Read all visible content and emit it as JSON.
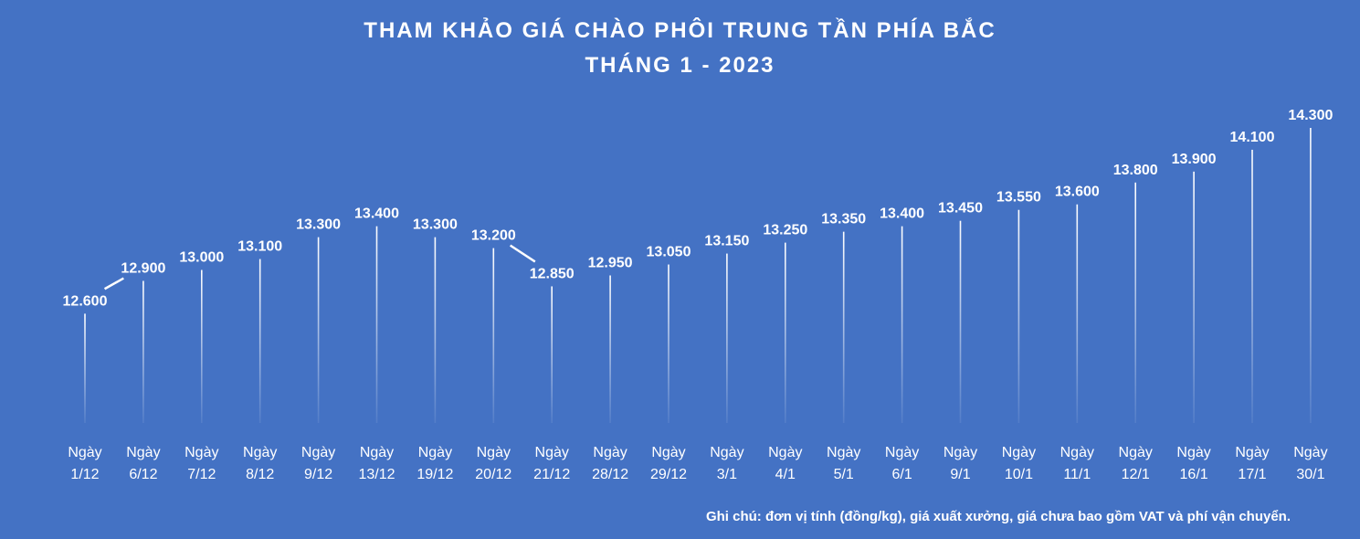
{
  "chart_data": {
    "type": "line",
    "title": "THAM KHẢO GIÁ CHÀO PHÔI TRUNG TẦN PHÍA BẮC",
    "subtitle": "THÁNG 1 - 2023",
    "categories": [
      [
        "Ngày",
        "1/12"
      ],
      [
        "Ngày",
        "6/12"
      ],
      [
        "Ngày",
        "7/12"
      ],
      [
        "Ngày",
        "8/12"
      ],
      [
        "Ngày",
        "9/12"
      ],
      [
        "Ngày",
        "13/12"
      ],
      [
        "Ngày",
        "19/12"
      ],
      [
        "Ngày",
        "20/12"
      ],
      [
        "Ngày",
        "21/12"
      ],
      [
        "Ngày",
        "28/12"
      ],
      [
        "Ngày",
        "29/12"
      ],
      [
        "Ngày",
        "3/1"
      ],
      [
        "Ngày",
        "4/1"
      ],
      [
        "Ngày",
        "5/1"
      ],
      [
        "Ngày",
        "6/1"
      ],
      [
        "Ngày",
        "9/1"
      ],
      [
        "Ngày",
        "10/1"
      ],
      [
        "Ngày",
        "11/1"
      ],
      [
        "Ngày",
        "12/1"
      ],
      [
        "Ngày",
        "16/1"
      ],
      [
        "Ngày",
        "17/1"
      ],
      [
        "Ngày",
        "30/1"
      ]
    ],
    "values": [
      12600,
      12900,
      13000,
      13100,
      13300,
      13400,
      13300,
      13200,
      12850,
      12950,
      13050,
      13150,
      13250,
      13350,
      13400,
      13450,
      13550,
      13600,
      13800,
      13900,
      14100,
      14300
    ],
    "labels": [
      "12.600",
      "12.900",
      "13.000",
      "13.100",
      "13.300",
      "13.400",
      "13.300",
      "13.200",
      "12.850",
      "12.950",
      "13.050",
      "13.150",
      "13.250",
      "13.350",
      "13.400",
      "13.450",
      "13.550",
      "13.600",
      "13.800",
      "13.900",
      "14.100",
      "14.300"
    ],
    "ylim": [
      11600,
      14300
    ],
    "grid": false,
    "legend": "none",
    "colors": {
      "background": "#4472c4",
      "line": "#ffffff",
      "text": "#ffffff"
    }
  },
  "note": "Ghi chú: đơn vị tính (đồng/kg), giá xuất xưởng, giá chưa bao gồm VAT và phí vận chuyển."
}
